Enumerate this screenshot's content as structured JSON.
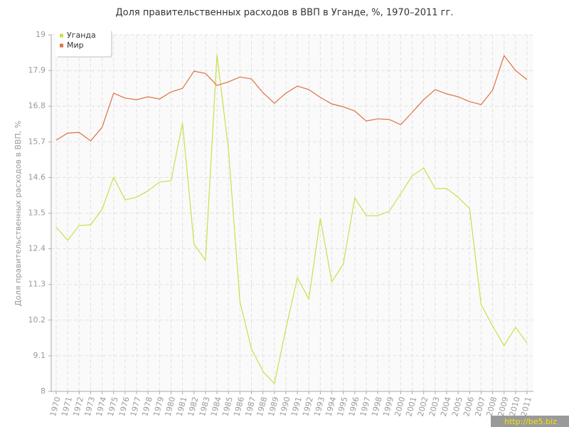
{
  "chart_data": {
    "type": "line",
    "title": "Доля правительственных расходов в ВВП в Уганде, %, 1970–2011 гг.",
    "y_label": "Доля правительственных расходов в ВВП, %",
    "categories": [
      "1970",
      "1971",
      "1972",
      "1973",
      "1974",
      "1975",
      "1976",
      "1977",
      "1978",
      "1979",
      "1980",
      "1981",
      "1982",
      "1983",
      "1984",
      "1985",
      "1986",
      "1987",
      "1988",
      "1989",
      "1990",
      "1991",
      "1992",
      "1993",
      "1994",
      "1995",
      "1996",
      "1997",
      "1998",
      "1999",
      "2000",
      "2001",
      "2002",
      "2003",
      "2004",
      "2005",
      "2006",
      "2007",
      "2008",
      "2009",
      "2010",
      "2011"
    ],
    "series": [
      {
        "name": "Уганда",
        "color": "#c8e04a",
        "values": [
          13.07,
          12.66,
          13.12,
          13.14,
          13.62,
          14.61,
          13.91,
          13.99,
          14.19,
          14.46,
          14.5,
          16.28,
          12.55,
          12.04,
          18.39,
          15.47,
          10.77,
          9.32,
          8.62,
          8.24,
          9.93,
          11.51,
          10.85,
          13.34,
          11.38,
          11.93,
          13.97,
          13.42,
          13.42,
          13.56,
          14.1,
          14.65,
          14.89,
          14.26,
          14.26,
          13.99,
          13.64,
          10.68,
          10.02,
          9.41,
          9.98,
          9.49
        ]
      },
      {
        "name": "Мир",
        "color": "#e07040",
        "values": [
          15.75,
          15.97,
          15.99,
          15.73,
          16.15,
          17.2,
          17.05,
          17.0,
          17.09,
          17.02,
          17.24,
          17.35,
          17.88,
          17.81,
          17.44,
          17.55,
          17.7,
          17.64,
          17.22,
          16.89,
          17.2,
          17.42,
          17.31,
          17.07,
          16.87,
          16.78,
          16.65,
          16.34,
          16.41,
          16.39,
          16.23,
          16.61,
          17.0,
          17.31,
          17.18,
          17.09,
          16.94,
          16.85,
          17.29,
          18.36,
          17.9,
          17.62
        ]
      }
    ],
    "ylim": [
      8,
      19
    ],
    "yticks": [
      8,
      9.1,
      10.2,
      11.3,
      12.4,
      13.5,
      14.6,
      15.7,
      16.8,
      17.9,
      19
    ],
    "grid": true,
    "legend": "top-left",
    "watermark": "http://be5.biz"
  }
}
